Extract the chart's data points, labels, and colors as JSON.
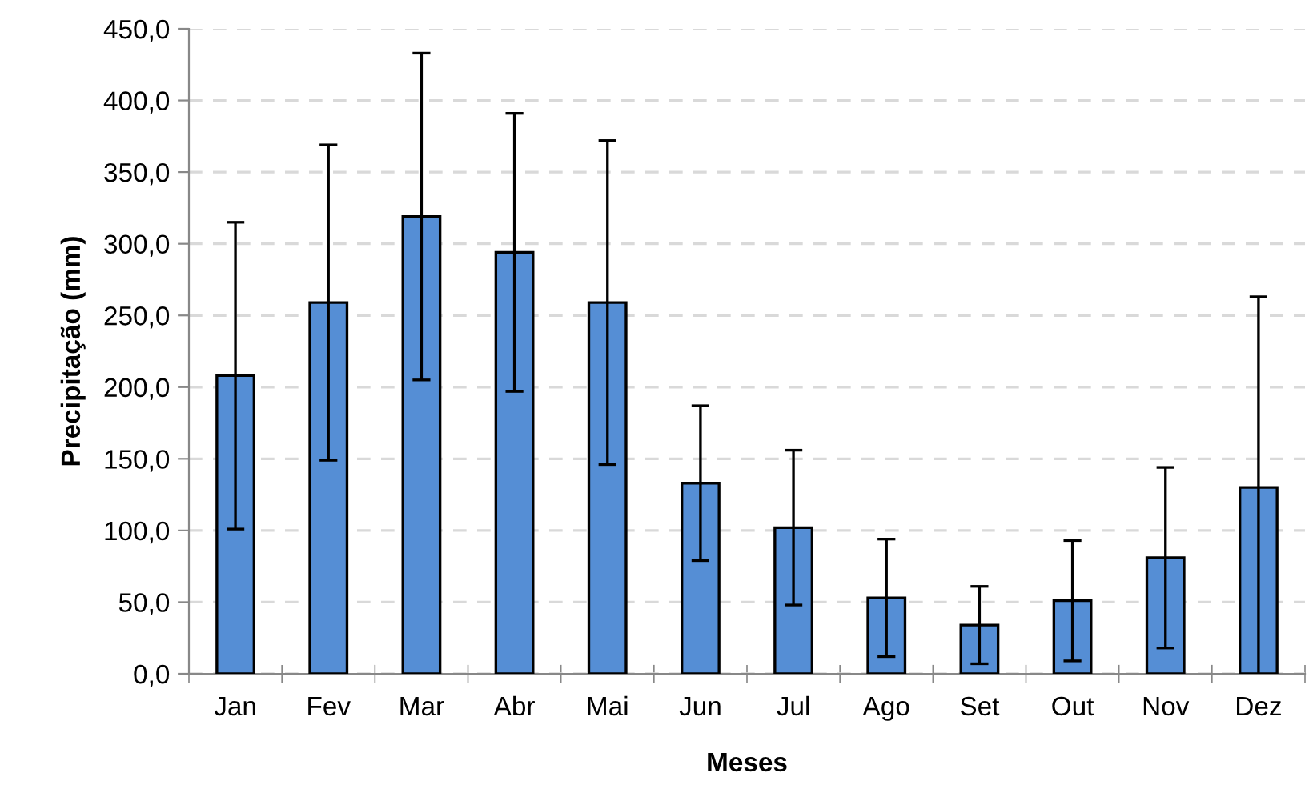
{
  "chart_data": {
    "type": "bar",
    "xlabel": "Meses",
    "ylabel": "Precipitação (mm)",
    "categories": [
      "Jan",
      "Fev",
      "Mar",
      "Abr",
      "Mai",
      "Jun",
      "Jul",
      "Ago",
      "Set",
      "Out",
      "Nov",
      "Dez"
    ],
    "series": [
      {
        "color": "#558ed5",
        "values": [
          208,
          259,
          319,
          294,
          259,
          133,
          102,
          53,
          34,
          51,
          81,
          130
        ],
        "errors": [
          107,
          110,
          114,
          97,
          113,
          54,
          54,
          41,
          27,
          42,
          63,
          133
        ]
      }
    ],
    "ylim": [
      0,
      450
    ],
    "yticks": [
      {
        "value": 0,
        "label": "0,0"
      },
      {
        "value": 50,
        "label": "50,0"
      },
      {
        "value": 100,
        "label": "100,0"
      },
      {
        "value": 150,
        "label": "150,0"
      },
      {
        "value": 200,
        "label": "200,0"
      },
      {
        "value": 250,
        "label": "250,0"
      },
      {
        "value": 300,
        "label": "300,0"
      },
      {
        "value": 350,
        "label": "350,0"
      },
      {
        "value": 400,
        "label": "400,0"
      },
      {
        "value": 450,
        "label": "450,0"
      }
    ],
    "grid": "y",
    "legend": false
  }
}
